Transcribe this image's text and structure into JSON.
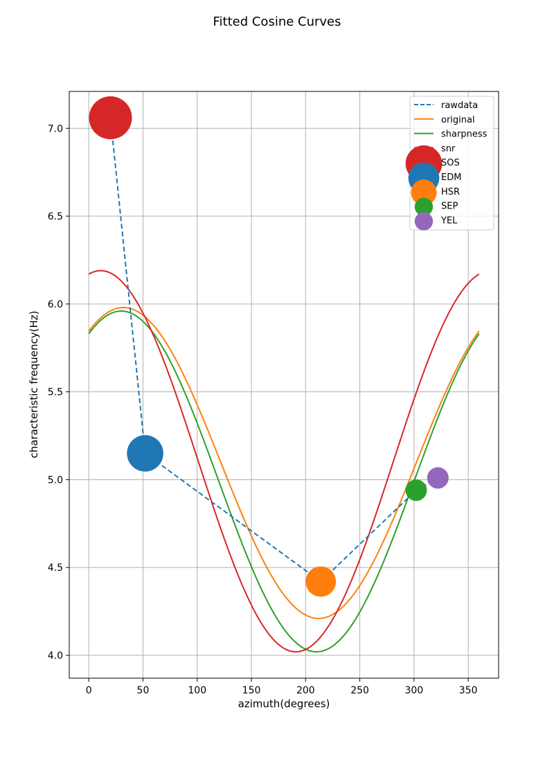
{
  "chart_data": {
    "type": "line",
    "title": "Fitted Cosine Curves",
    "xlabel": "azimuth(degrees)",
    "ylabel": "characteristic frequency(Hz)",
    "xlim": [
      -18,
      378
    ],
    "ylim": [
      3.87,
      7.21
    ],
    "xticks": [
      "0",
      "50",
      "100",
      "150",
      "200",
      "250",
      "300",
      "350"
    ],
    "yticks": [
      "4.0",
      "4.5",
      "5.0",
      "5.5",
      "6.0",
      "6.5",
      "7.0"
    ],
    "grid": true,
    "legend_position": "top-right",
    "rawdata": {
      "name": "rawdata",
      "color": "#1f77b4",
      "style": "dashed",
      "x": [
        20,
        52,
        214,
        302,
        322
      ],
      "y": [
        7.06,
        5.15,
        4.42,
        4.94,
        5.01
      ]
    },
    "curves": [
      {
        "name": "original",
        "color": "#ff7f0e",
        "mean": 5.095,
        "amplitude": 0.885,
        "phase_deg": 32
      },
      {
        "name": "sharpness",
        "color": "#2ca02c",
        "mean": 4.99,
        "amplitude": 0.97,
        "phase_deg": 30
      },
      {
        "name": "snr",
        "color": "#d62728",
        "mean": 5.105,
        "amplitude": 1.085,
        "phase_deg": 11
      }
    ],
    "points": [
      {
        "name": "SOS",
        "x": 20,
        "y": 7.06,
        "color": "#d62728",
        "size": 1.0
      },
      {
        "name": "EDM",
        "x": 52,
        "y": 5.15,
        "color": "#1f77b4",
        "size": 0.72
      },
      {
        "name": "HSR",
        "x": 214,
        "y": 4.42,
        "color": "#ff7f0e",
        "size": 0.5
      },
      {
        "name": "SEP",
        "x": 302,
        "y": 4.94,
        "color": "#2ca02c",
        "size": 0.25
      },
      {
        "name": "YEL",
        "x": 322,
        "y": 5.01,
        "color": "#9467bd",
        "size": 0.25
      }
    ]
  }
}
